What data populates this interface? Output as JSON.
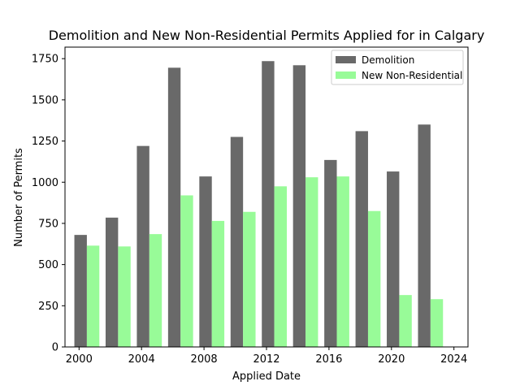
{
  "chart_data": {
    "type": "bar",
    "title": "Demolition and New Non-Residential Permits Applied for in Calgary",
    "xlabel": "Applied Date",
    "ylabel": "Number of Permits",
    "xlim": [
      1999.1,
      2024.9
    ],
    "ylim": [
      0,
      1820
    ],
    "x_ticks": [
      2000,
      2004,
      2008,
      2012,
      2016,
      2020,
      2024
    ],
    "y_ticks": [
      0,
      250,
      500,
      750,
      1000,
      1250,
      1500,
      1750
    ],
    "bar_width_years": 0.8,
    "legend_position": "top-right",
    "grid": false,
    "series": [
      {
        "name": "Demolition",
        "color": "#696969",
        "x": [
          2000.1,
          2002.1,
          2004.1,
          2006.1,
          2008.1,
          2010.1,
          2012.1,
          2014.1,
          2016.1,
          2018.1,
          2020.1,
          2022.1
        ],
        "values": [
          680,
          785,
          1220,
          1695,
          1035,
          1275,
          1735,
          1710,
          1135,
          1310,
          1065,
          1350
        ]
      },
      {
        "name": "New Non-Residential",
        "color": "#98fb98",
        "x": [
          2000.9,
          2002.9,
          2004.9,
          2006.9,
          2008.9,
          2010.9,
          2012.9,
          2014.9,
          2016.9,
          2018.9,
          2020.9,
          2022.9
        ],
        "values": [
          615,
          610,
          685,
          920,
          765,
          820,
          975,
          1030,
          1035,
          825,
          315,
          290
        ]
      }
    ]
  }
}
